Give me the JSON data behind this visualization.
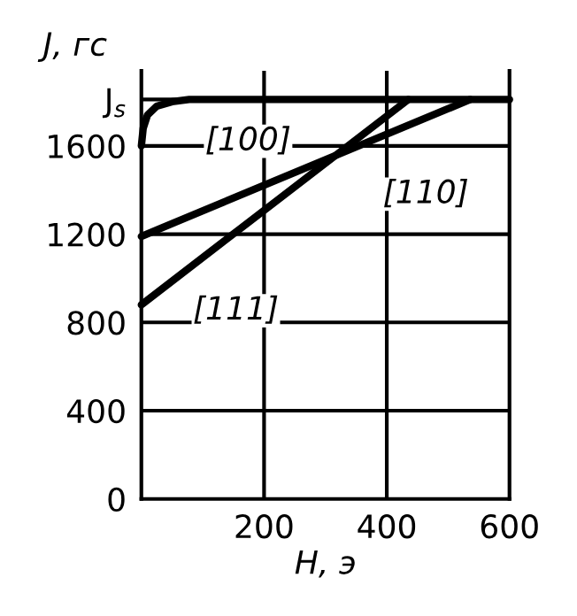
{
  "chart_data": {
    "type": "line",
    "xlabel": "H, э",
    "ylabel": "J, гс",
    "series": [
      {
        "name": "[100]",
        "color": "#000000",
        "x": [
          0,
          3,
          10,
          25,
          50,
          78,
          600
        ],
        "values": [
          1600,
          1680,
          1740,
          1780,
          1800,
          1810,
          1810
        ]
      },
      {
        "name": "[110]",
        "color": "#000000",
        "x": [
          0,
          536
        ],
        "values": [
          1190,
          1810
        ]
      },
      {
        "name": "[111]",
        "color": "#000000",
        "x": [
          0,
          435
        ],
        "values": [
          880,
          1810
        ]
      }
    ],
    "xlim": [
      0,
      600
    ],
    "ylim": [
      0,
      1940
    ],
    "xticks": [
      200,
      400,
      600
    ],
    "yticks": [
      0,
      400,
      800,
      1200,
      1600,
      {
        "value": 1810,
        "label": "J$_{s}$"
      }
    ],
    "grid": true,
    "marker": "none",
    "line_style": "solid"
  }
}
